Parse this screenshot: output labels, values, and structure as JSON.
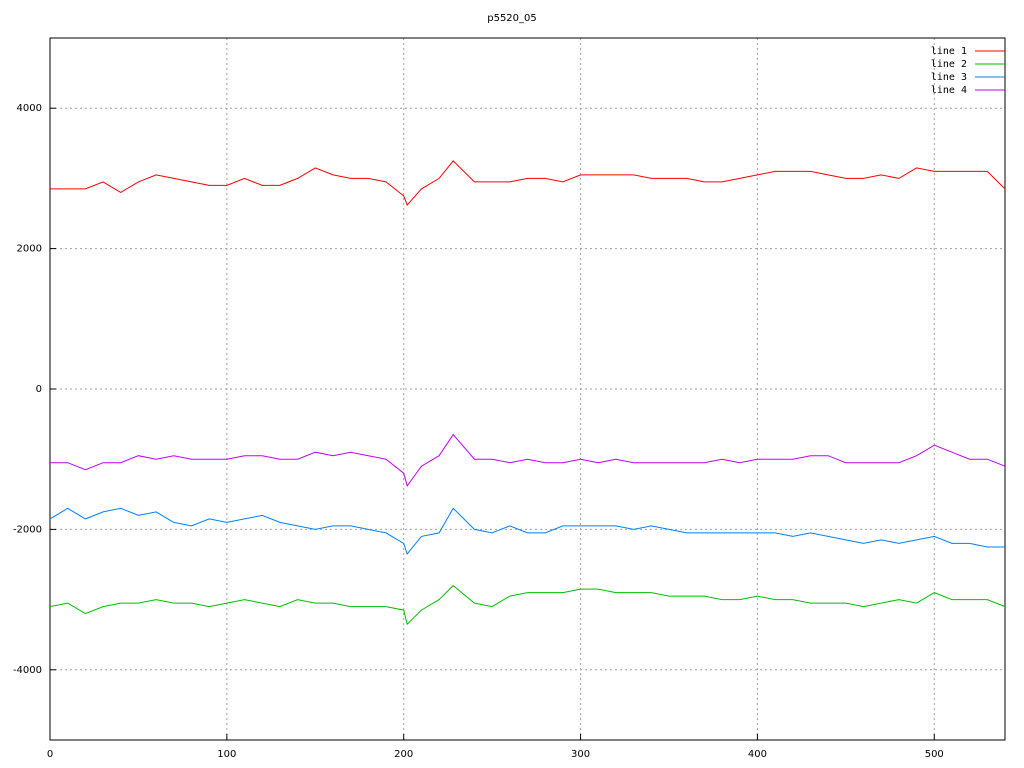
{
  "chart_data": {
    "type": "line",
    "title": "p5520_05",
    "x": [
      0,
      10,
      20,
      30,
      40,
      50,
      60,
      70,
      80,
      90,
      100,
      110,
      120,
      130,
      140,
      150,
      160,
      170,
      180,
      190,
      200,
      202,
      210,
      220,
      228,
      240,
      250,
      260,
      270,
      280,
      290,
      300,
      310,
      320,
      330,
      340,
      350,
      360,
      370,
      380,
      390,
      400,
      410,
      420,
      430,
      440,
      450,
      460,
      470,
      480,
      490,
      500,
      510,
      520,
      530,
      540
    ],
    "series": [
      {
        "name": "line 1",
        "color": "#ff0000",
        "values": [
          2850,
          2850,
          2850,
          2950,
          2800,
          2950,
          3050,
          3000,
          2950,
          2900,
          2900,
          3000,
          2900,
          2900,
          3000,
          3150,
          3050,
          3000,
          3000,
          2950,
          2750,
          2620,
          2850,
          3000,
          3250,
          2950,
          2950,
          2950,
          3000,
          3000,
          2950,
          3050,
          3050,
          3050,
          3050,
          3000,
          3000,
          3000,
          2950,
          2950,
          3000,
          3050,
          3100,
          3100,
          3100,
          3050,
          3000,
          3000,
          3050,
          3000,
          3150,
          3100,
          3100,
          3100,
          3100,
          2850
        ]
      },
      {
        "name": "line 2",
        "color": "#00c000",
        "values": [
          -3100,
          -3050,
          -3200,
          -3100,
          -3050,
          -3050,
          -3000,
          -3050,
          -3050,
          -3100,
          -3050,
          -3000,
          -3050,
          -3100,
          -3000,
          -3050,
          -3050,
          -3100,
          -3100,
          -3100,
          -3150,
          -3350,
          -3150,
          -3000,
          -2800,
          -3050,
          -3100,
          -2950,
          -2900,
          -2900,
          -2900,
          -2850,
          -2850,
          -2900,
          -2900,
          -2900,
          -2950,
          -2950,
          -2950,
          -3000,
          -3000,
          -2950,
          -3000,
          -3000,
          -3050,
          -3050,
          -3050,
          -3100,
          -3050,
          -3000,
          -3050,
          -2900,
          -3000,
          -3000,
          -3000,
          -3100
        ]
      },
      {
        "name": "line 3",
        "color": "#0080ff",
        "values": [
          -1850,
          -1700,
          -1850,
          -1750,
          -1700,
          -1800,
          -1750,
          -1900,
          -1950,
          -1850,
          -1900,
          -1850,
          -1800,
          -1900,
          -1950,
          -2000,
          -1950,
          -1950,
          -2000,
          -2050,
          -2200,
          -2350,
          -2100,
          -2050,
          -1700,
          -2000,
          -2050,
          -1950,
          -2050,
          -2050,
          -1950,
          -1950,
          -1950,
          -1950,
          -2000,
          -1950,
          -2000,
          -2050,
          -2050,
          -2050,
          -2050,
          -2050,
          -2050,
          -2100,
          -2050,
          -2100,
          -2150,
          -2200,
          -2150,
          -2200,
          -2150,
          -2100,
          -2200,
          -2200,
          -2250,
          -2250
        ]
      },
      {
        "name": "line 4",
        "color": "#c000ff",
        "values": [
          -1050,
          -1050,
          -1150,
          -1050,
          -1050,
          -950,
          -1000,
          -950,
          -1000,
          -1000,
          -1000,
          -950,
          -950,
          -1000,
          -1000,
          -900,
          -950,
          -900,
          -950,
          -1000,
          -1200,
          -1380,
          -1100,
          -950,
          -650,
          -1000,
          -1000,
          -1050,
          -1000,
          -1050,
          -1050,
          -1000,
          -1050,
          -1000,
          -1050,
          -1050,
          -1050,
          -1050,
          -1050,
          -1000,
          -1050,
          -1000,
          -1000,
          -1000,
          -950,
          -950,
          -1050,
          -1050,
          -1050,
          -1050,
          -950,
          -800,
          -900,
          -1000,
          -1000,
          -1100
        ]
      }
    ],
    "xlim": [
      0,
      540
    ],
    "xticks": [
      0,
      100,
      200,
      300,
      400,
      500
    ],
    "ylim": [
      -5000,
      5000
    ],
    "yticks": [
      -4000,
      -2000,
      0,
      2000,
      4000
    ],
    "grid": true,
    "legend": "top-right"
  }
}
